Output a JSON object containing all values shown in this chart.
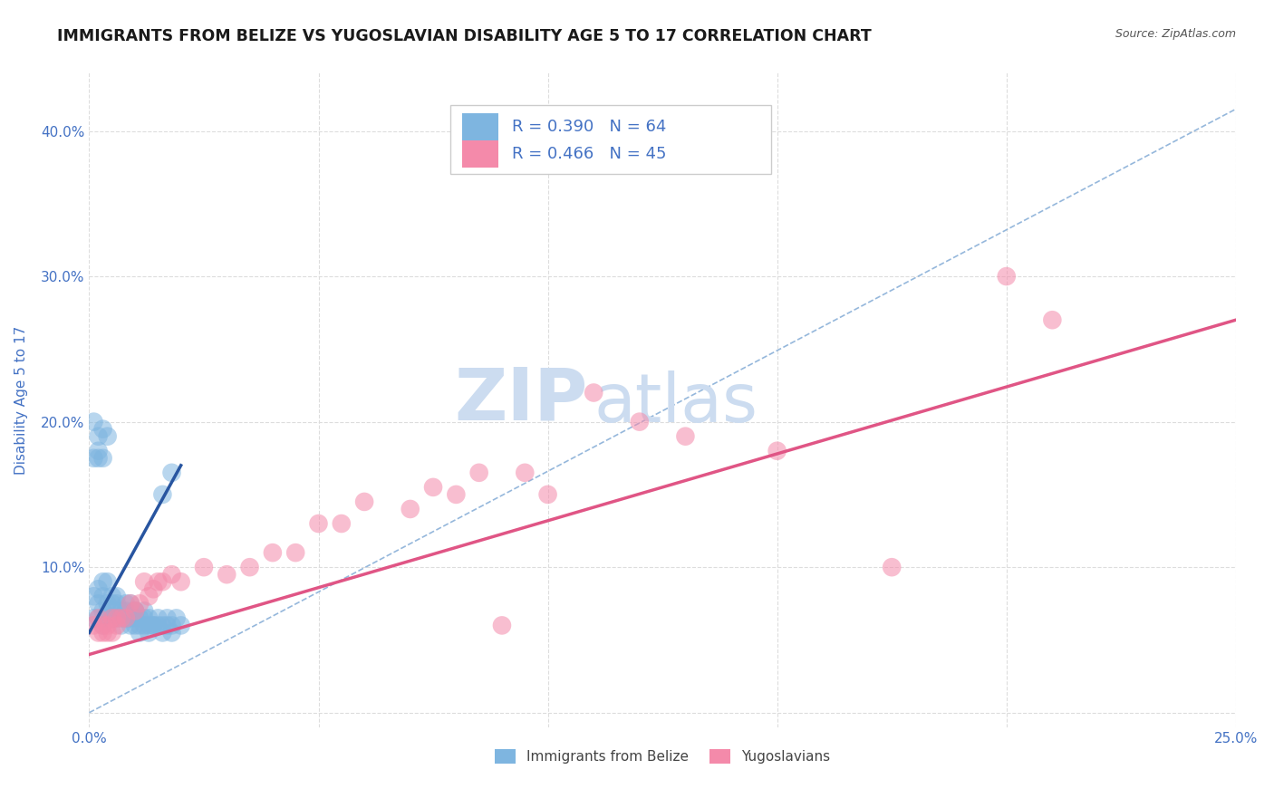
{
  "title": "IMMIGRANTS FROM BELIZE VS YUGOSLAVIAN DISABILITY AGE 5 TO 17 CORRELATION CHART",
  "source_text": "Source: ZipAtlas.com",
  "ylabel": "Disability Age 5 to 17",
  "xlim": [
    0.0,
    0.25
  ],
  "ylim": [
    -0.01,
    0.44
  ],
  "xticks": [
    0.0,
    0.05,
    0.1,
    0.15,
    0.2,
    0.25
  ],
  "yticks": [
    0.0,
    0.1,
    0.2,
    0.3,
    0.4
  ],
  "xticklabels": [
    "0.0%",
    "",
    "",
    "",
    "",
    "25.0%"
  ],
  "yticklabels": [
    "",
    "10.0%",
    "20.0%",
    "30.0%",
    "40.0%"
  ],
  "legend_series": [
    {
      "label": "R = 0.390   N = 64",
      "color": "#aec6e8"
    },
    {
      "label": "R = 0.466   N = 45",
      "color": "#f4b8c8"
    }
  ],
  "legend_labels": [
    "Immigrants from Belize",
    "Yugoslavians"
  ],
  "watermark_zip": "ZIP",
  "watermark_atlas": "atlas",
  "blue_scatter_x": [
    0.001,
    0.001,
    0.002,
    0.002,
    0.002,
    0.003,
    0.003,
    0.003,
    0.003,
    0.004,
    0.004,
    0.004,
    0.005,
    0.005,
    0.005,
    0.005,
    0.006,
    0.006,
    0.006,
    0.007,
    0.007,
    0.007,
    0.008,
    0.008,
    0.008,
    0.008,
    0.009,
    0.009,
    0.009,
    0.01,
    0.01,
    0.01,
    0.01,
    0.011,
    0.011,
    0.011,
    0.012,
    0.012,
    0.012,
    0.013,
    0.013,
    0.013,
    0.014,
    0.014,
    0.015,
    0.015,
    0.016,
    0.016,
    0.017,
    0.017,
    0.018,
    0.018,
    0.019,
    0.02,
    0.001,
    0.001,
    0.002,
    0.002,
    0.002,
    0.003,
    0.003,
    0.004,
    0.016,
    0.018
  ],
  "blue_scatter_y": [
    0.08,
    0.065,
    0.075,
    0.065,
    0.085,
    0.07,
    0.08,
    0.06,
    0.09,
    0.075,
    0.065,
    0.09,
    0.075,
    0.08,
    0.07,
    0.065,
    0.075,
    0.065,
    0.08,
    0.07,
    0.065,
    0.06,
    0.075,
    0.065,
    0.065,
    0.07,
    0.075,
    0.065,
    0.06,
    0.07,
    0.06,
    0.065,
    0.07,
    0.065,
    0.06,
    0.055,
    0.065,
    0.06,
    0.07,
    0.065,
    0.06,
    0.055,
    0.06,
    0.06,
    0.06,
    0.065,
    0.055,
    0.06,
    0.065,
    0.06,
    0.055,
    0.06,
    0.065,
    0.06,
    0.175,
    0.2,
    0.18,
    0.175,
    0.19,
    0.195,
    0.175,
    0.19,
    0.15,
    0.165
  ],
  "pink_scatter_x": [
    0.001,
    0.002,
    0.002,
    0.003,
    0.003,
    0.004,
    0.004,
    0.005,
    0.005,
    0.006,
    0.006,
    0.007,
    0.008,
    0.009,
    0.01,
    0.011,
    0.012,
    0.013,
    0.014,
    0.015,
    0.016,
    0.018,
    0.02,
    0.025,
    0.03,
    0.035,
    0.04,
    0.045,
    0.05,
    0.055,
    0.06,
    0.07,
    0.075,
    0.08,
    0.085,
    0.09,
    0.095,
    0.1,
    0.11,
    0.12,
    0.13,
    0.15,
    0.175,
    0.2,
    0.21
  ],
  "pink_scatter_y": [
    0.06,
    0.065,
    0.055,
    0.06,
    0.055,
    0.055,
    0.06,
    0.055,
    0.065,
    0.06,
    0.065,
    0.065,
    0.065,
    0.075,
    0.07,
    0.075,
    0.09,
    0.08,
    0.085,
    0.09,
    0.09,
    0.095,
    0.09,
    0.1,
    0.095,
    0.1,
    0.11,
    0.11,
    0.13,
    0.13,
    0.145,
    0.14,
    0.155,
    0.15,
    0.165,
    0.06,
    0.165,
    0.15,
    0.22,
    0.2,
    0.19,
    0.18,
    0.1,
    0.3,
    0.27
  ],
  "blue_line_x": [
    0.0,
    0.02
  ],
  "blue_line_y": [
    0.055,
    0.17
  ],
  "pink_line_x": [
    0.0,
    0.25
  ],
  "pink_line_y": [
    0.04,
    0.27
  ],
  "diag_line_x": [
    0.0,
    0.25
  ],
  "diag_line_y": [
    0.0,
    0.415
  ],
  "title_color": "#1a1a1a",
  "title_fontsize": 12.5,
  "axis_label_color": "#4472c4",
  "axis_tick_color": "#4472c4",
  "grid_color": "#dddddd",
  "blue_color": "#7eb5e0",
  "pink_color": "#f48aaa",
  "blue_line_color": "#2855a0",
  "pink_line_color": "#e05585",
  "diag_line_color": "#8ab0d8",
  "source_color": "#555555",
  "watermark_color": "#ccdcf0",
  "legend_text_color": "#4472c4",
  "background_color": "#ffffff"
}
